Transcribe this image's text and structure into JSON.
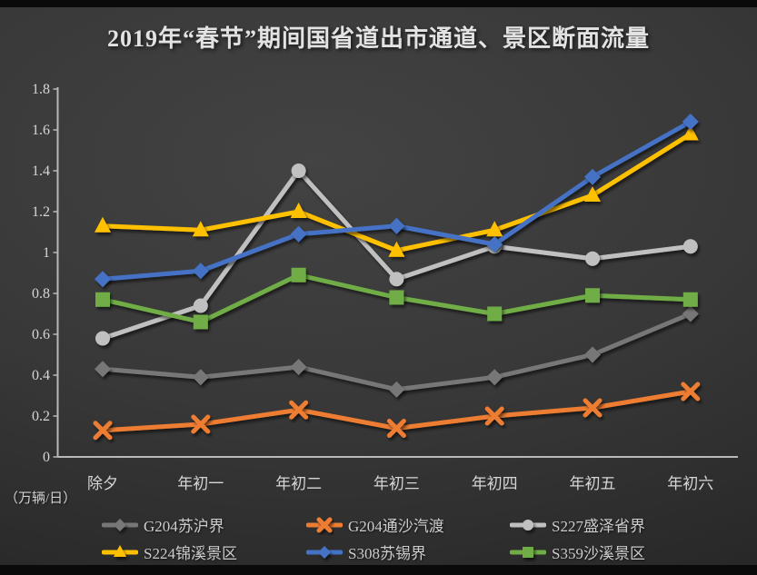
{
  "title": "2019年“春节”期间国省道出市通道、景区断面流量",
  "y_unit_label": "（万辆/日）",
  "chart_data": {
    "type": "line",
    "title": "2019年“春节”期间国省道出市通道、景区断面流量",
    "xlabel": "",
    "ylabel": "（万辆/日）",
    "ylim": [
      0,
      1.8
    ],
    "ytick_step": 0.2,
    "ytick_labels": [
      "0",
      "0.2",
      "0.4",
      "0.6",
      "0.8",
      "1",
      "1.2",
      "1.4",
      "1.6",
      "1.8"
    ],
    "grid": false,
    "legend_position": "bottom",
    "background": "dark-gray-gradient",
    "categories": [
      "除夕",
      "年初一",
      "年初二",
      "年初三",
      "年初四",
      "年初五",
      "年初六"
    ],
    "series": [
      {
        "name": "G204苏沪界",
        "color": "#777777",
        "marker": "diamond",
        "values": [
          0.43,
          0.39,
          0.44,
          0.33,
          0.39,
          0.5,
          0.7
        ]
      },
      {
        "name": "G204通沙汽渡",
        "color": "#ED7D31",
        "marker": "x",
        "values": [
          0.13,
          0.16,
          0.23,
          0.14,
          0.2,
          0.24,
          0.32
        ]
      },
      {
        "name": "S227盛泽省界",
        "color": "#C0C0C0",
        "marker": "circle",
        "values": [
          0.58,
          0.74,
          1.4,
          0.87,
          1.03,
          0.97,
          1.03
        ]
      },
      {
        "name": "S224锦溪景区",
        "color": "#FFC000",
        "marker": "triangle",
        "values": [
          1.13,
          1.11,
          1.2,
          1.01,
          1.11,
          1.28,
          1.58
        ]
      },
      {
        "name": "S308苏锡界",
        "color": "#4472C4",
        "marker": "diamond",
        "values": [
          0.87,
          0.91,
          1.09,
          1.13,
          1.04,
          1.37,
          1.64
        ]
      },
      {
        "name": "S359沙溪景区",
        "color": "#70AD47",
        "marker": "square",
        "values": [
          0.77,
          0.66,
          0.89,
          0.78,
          0.7,
          0.79,
          0.77
        ]
      }
    ],
    "axis_color": "#b9b9b9",
    "tick_text_color": "#d6d6d6"
  }
}
